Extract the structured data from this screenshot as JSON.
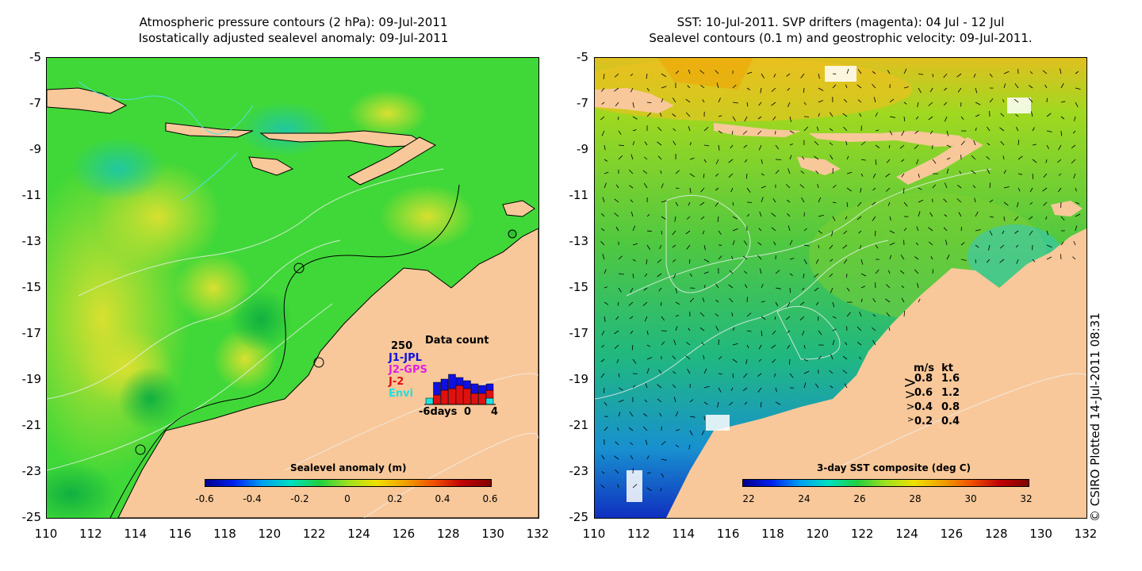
{
  "left_panel": {
    "title_line1": "Atmospheric pressure contours (2 hPa): 09-Jul-2011",
    "title_line2": "Isostatically adjusted sealevel anomaly: 09-Jul-2011",
    "colorbar_label": "Sealevel anomaly (m)",
    "colorbar_ticks": [
      "-0.6",
      "-0.4",
      "-0.2",
      "0",
      "0.2",
      "0.4",
      "0.6"
    ],
    "data_count": {
      "title": "Data count",
      "ymax_label": "250",
      "series": [
        {
          "name": "J1-JPL",
          "color": "#1010e0"
        },
        {
          "name": "J2-GPS",
          "color": "#e020e0"
        },
        {
          "name": "J-2",
          "color": "#e01010"
        },
        {
          "name": "Envi",
          "color": "#20e0e0"
        }
      ],
      "x_labels": [
        "-6days",
        "0",
        "4"
      ]
    }
  },
  "right_panel": {
    "title_line1": "SST: 10-Jul-2011. SVP drifters (magenta): 04 Jul - 12 Jul",
    "title_line2": "Sealevel contours (0.1 m) and geostrophic velocity: 09-Jul-2011.",
    "colorbar_label": "3-day SST composite (deg C)",
    "colorbar_ticks": [
      "22",
      "24",
      "26",
      "28",
      "30",
      "32"
    ],
    "speed_legend": {
      "header": "m/s  kt",
      "rows": [
        {
          "ms": "0.8",
          "kt": "1.6"
        },
        {
          "ms": "0.6",
          "kt": "1.2"
        },
        {
          "ms": "0.4",
          "kt": "0.8"
        },
        {
          "ms": "0.2",
          "kt": "0.4"
        }
      ]
    }
  },
  "axes": {
    "y_ticks": [
      "-5",
      "-7",
      "-9",
      "-11",
      "-13",
      "-15",
      "-17",
      "-19",
      "-21",
      "-23",
      "-25"
    ],
    "x_ticks": [
      "110",
      "112",
      "114",
      "116",
      "118",
      "120",
      "122",
      "124",
      "126",
      "128",
      "130",
      "132"
    ]
  },
  "credit": "© CSIRO Plotted 14-Jul-2011 08:31",
  "colors": {
    "land": "#f8c89a",
    "ocean_green": "#30d030",
    "sst_blue": "#20a0e8"
  }
}
